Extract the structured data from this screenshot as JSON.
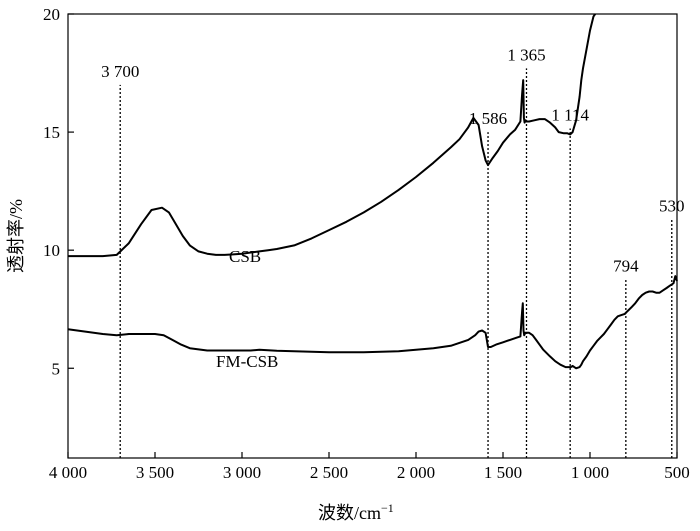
{
  "chart_data": {
    "type": "line",
    "xlabel": "波数/cm",
    "xlabel_sup": "−1",
    "ylabel": "透射率/%",
    "xlim": [
      4000,
      500
    ],
    "ylim": [
      1.2,
      20
    ],
    "x_reversed": true,
    "x_ticks": [
      4000,
      3500,
      3000,
      2500,
      2000,
      1500,
      1000,
      500
    ],
    "x_tick_labels": [
      "4 000",
      "3 500",
      "3 000",
      "2 500",
      "2 000",
      "1 500",
      "1 000",
      "500"
    ],
    "y_ticks": [
      5,
      10,
      15,
      20
    ],
    "y_tick_labels": [
      "5",
      "10",
      "15",
      "20"
    ],
    "grid": false,
    "series": [
      {
        "name": "CSB",
        "x": [
          4000,
          3800,
          3720,
          3650,
          3580,
          3520,
          3460,
          3420,
          3380,
          3340,
          3300,
          3250,
          3200,
          3150,
          3100,
          3050,
          3000,
          2950,
          2900,
          2850,
          2800,
          2700,
          2600,
          2500,
          2400,
          2300,
          2200,
          2100,
          2000,
          1900,
          1800,
          1750,
          1700,
          1670,
          1640,
          1620,
          1600,
          1586,
          1560,
          1530,
          1500,
          1460,
          1430,
          1400,
          1390,
          1384,
          1380,
          1376,
          1370,
          1365,
          1350,
          1320,
          1290,
          1260,
          1230,
          1200,
          1180,
          1150,
          1130,
          1114,
          1100,
          1080,
          1060,
          1050,
          1040,
          1020,
          1000,
          980,
          970
        ],
        "y": [
          9.75,
          9.75,
          9.8,
          10.3,
          11.1,
          11.7,
          11.8,
          11.6,
          11.1,
          10.6,
          10.2,
          9.95,
          9.85,
          9.8,
          9.8,
          9.82,
          9.85,
          9.9,
          9.95,
          10.0,
          10.05,
          10.2,
          10.5,
          10.85,
          11.2,
          11.6,
          12.05,
          12.55,
          13.1,
          13.7,
          14.35,
          14.7,
          15.2,
          15.6,
          15.3,
          14.4,
          13.8,
          13.6,
          13.9,
          14.2,
          14.55,
          14.9,
          15.1,
          15.45,
          16.6,
          17.2,
          15.6,
          15.4,
          15.5,
          15.45,
          15.45,
          15.5,
          15.55,
          15.55,
          15.4,
          15.2,
          15.0,
          14.95,
          14.95,
          14.9,
          15.0,
          15.5,
          16.5,
          17.2,
          17.7,
          18.5,
          19.3,
          19.9,
          20.0
        ]
      },
      {
        "name": "FM-CSB",
        "x": [
          4000,
          3900,
          3800,
          3720,
          3650,
          3600,
          3550,
          3500,
          3450,
          3400,
          3350,
          3300,
          3250,
          3200,
          3100,
          3000,
          2950,
          2900,
          2850,
          2800,
          2700,
          2600,
          2500,
          2400,
          2300,
          2200,
          2100,
          2000,
          1900,
          1800,
          1700,
          1660,
          1640,
          1620,
          1600,
          1586,
          1570,
          1540,
          1500,
          1460,
          1420,
          1400,
          1390,
          1386,
          1382,
          1378,
          1372,
          1365,
          1350,
          1330,
          1310,
          1290,
          1270,
          1250,
          1230,
          1200,
          1170,
          1140,
          1110,
          1100,
          1090,
          1080,
          1060,
          1050,
          1040,
          1020,
          1000,
          980,
          960,
          940,
          920,
          900,
          880,
          860,
          840,
          820,
          800,
          794,
          780,
          760,
          740,
          720,
          700,
          680,
          660,
          640,
          620,
          600,
          580,
          560,
          540,
          530,
          520,
          510,
          500
        ],
        "y": [
          6.65,
          6.55,
          6.45,
          6.4,
          6.45,
          6.45,
          6.45,
          6.45,
          6.4,
          6.2,
          6.0,
          5.85,
          5.8,
          5.75,
          5.75,
          5.75,
          5.75,
          5.78,
          5.76,
          5.74,
          5.72,
          5.7,
          5.68,
          5.68,
          5.68,
          5.7,
          5.72,
          5.78,
          5.85,
          5.95,
          6.2,
          6.4,
          6.55,
          6.6,
          6.5,
          5.9,
          5.9,
          6.0,
          6.1,
          6.2,
          6.3,
          6.35,
          7.4,
          7.75,
          6.6,
          6.4,
          6.5,
          6.5,
          6.5,
          6.4,
          6.2,
          6.0,
          5.8,
          5.65,
          5.5,
          5.3,
          5.15,
          5.05,
          5.05,
          5.1,
          5.05,
          5.0,
          5.05,
          5.15,
          5.3,
          5.5,
          5.75,
          5.95,
          6.15,
          6.3,
          6.45,
          6.65,
          6.85,
          7.05,
          7.2,
          7.25,
          7.3,
          7.35,
          7.45,
          7.6,
          7.75,
          7.95,
          8.1,
          8.2,
          8.25,
          8.25,
          8.2,
          8.2,
          8.3,
          8.4,
          8.5,
          8.55,
          8.6,
          8.9,
          8.7
        ]
      }
    ],
    "annotations": [
      {
        "label": "3 700",
        "x": 3700,
        "y_top": 17.0
      },
      {
        "label": "1 586",
        "x": 1586,
        "y_top": 15.0
      },
      {
        "label": "1 365",
        "x": 1365,
        "y_top": 17.7
      },
      {
        "label": "1 114",
        "x": 1114,
        "y_top": 15.15
      },
      {
        "label": "794",
        "x": 794,
        "y_top": 8.75
      },
      {
        "label": "530",
        "x": 530,
        "y_top": 11.3
      }
    ]
  }
}
